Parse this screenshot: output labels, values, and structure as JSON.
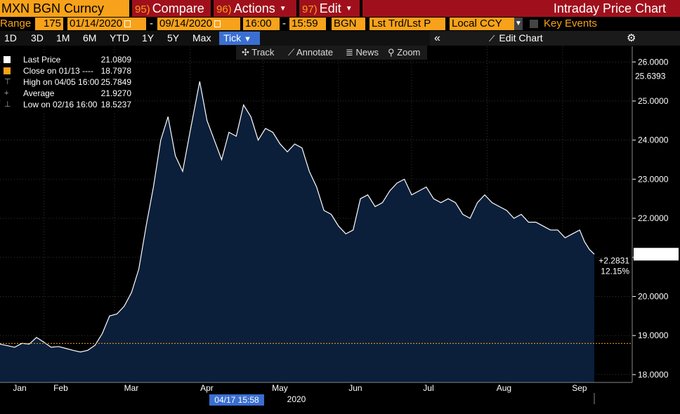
{
  "header": {
    "ticker": "MXN BGN Curncy",
    "compare": {
      "num": "95)",
      "label": "Compare"
    },
    "actions": {
      "num": "96)",
      "label": "Actions"
    },
    "edit": {
      "num": "97)",
      "label": "Edit"
    },
    "title": "Intraday Price Chart"
  },
  "range_bar": {
    "label": "Range",
    "days": "175",
    "start_date": "01/14/2020",
    "end_date": "09/14/2020",
    "start_time": "16:00",
    "end_time": "15:59",
    "source": "BGN",
    "price_type": "Lst Trd/Lst P",
    "currency": "Local CCY",
    "key_events": "Key Events"
  },
  "periods": [
    "1D",
    "3D",
    "1M",
    "6M",
    "YTD",
    "1Y",
    "5Y",
    "Max"
  ],
  "tick_label": "Tick",
  "edit_chart": "Edit Chart",
  "chart_tools": {
    "track": "Track",
    "annotate": "Annotate",
    "news": "News",
    "zoom": "Zoom"
  },
  "legend": [
    {
      "label": "Last Price",
      "value": "21.0809",
      "color": "#ffffff"
    },
    {
      "label": "Close on 01/13 ----",
      "value": "18.7978",
      "color": "#f7a21a"
    },
    {
      "label": "High on 04/05 16:00",
      "value": "25.7849"
    },
    {
      "label": "Average",
      "value": "21.9270"
    },
    {
      "label": "Low on 02/16 16:00",
      "value": "18.5237"
    }
  ],
  "chart_data": {
    "type": "area",
    "x_labels": [
      "Jan",
      "Feb",
      "Mar",
      "Apr",
      "May",
      "Jun",
      "Jul",
      "Aug",
      "Sep"
    ],
    "year_label": "2020",
    "crosshair_label": "04/17 15:58",
    "ylim": [
      17.8,
      26.4
    ],
    "y_ticks": [
      "18.0000",
      "19.0000",
      "20.0000",
      "21.0000",
      "22.0000",
      "23.0000",
      "24.0000",
      "25.0000",
      "26.0000"
    ],
    "last_price": 21.0809,
    "last_price_label": "21.0809",
    "crosshair_value_label": "25.6393",
    "prev_close": 18.7978,
    "change_abs": "+2.2831",
    "change_pct": "12.15%",
    "series": [
      {
        "points": [
          [
            "01-14",
            18.78
          ],
          [
            "01-17",
            18.74
          ],
          [
            "01-20",
            18.7
          ],
          [
            "01-23",
            18.8
          ],
          [
            "01-26",
            18.78
          ],
          [
            "01-29",
            18.95
          ],
          [
            "02-01",
            18.83
          ],
          [
            "02-04",
            18.7
          ],
          [
            "02-07",
            18.72
          ],
          [
            "02-10",
            18.67
          ],
          [
            "02-13",
            18.62
          ],
          [
            "02-16",
            18.58
          ],
          [
            "02-19",
            18.62
          ],
          [
            "02-22",
            18.75
          ],
          [
            "02-25",
            19.05
          ],
          [
            "02-28",
            19.5
          ],
          [
            "03-02",
            19.55
          ],
          [
            "03-05",
            19.75
          ],
          [
            "03-08",
            20.1
          ],
          [
            "03-11",
            20.7
          ],
          [
            "03-14",
            21.8
          ],
          [
            "03-17",
            22.8
          ],
          [
            "03-20",
            24.0
          ],
          [
            "03-23",
            24.6
          ],
          [
            "03-26",
            23.6
          ],
          [
            "03-29",
            23.2
          ],
          [
            "04-01",
            24.2
          ],
          [
            "04-05",
            25.5
          ],
          [
            "04-08",
            24.5
          ],
          [
            "04-11",
            24.0
          ],
          [
            "04-14",
            23.5
          ],
          [
            "04-17",
            24.2
          ],
          [
            "04-20",
            24.1
          ],
          [
            "04-23",
            24.9
          ],
          [
            "04-26",
            24.6
          ],
          [
            "04-29",
            24.0
          ],
          [
            "05-02",
            24.3
          ],
          [
            "05-05",
            24.2
          ],
          [
            "05-08",
            23.9
          ],
          [
            "05-11",
            23.7
          ],
          [
            "05-14",
            23.9
          ],
          [
            "05-17",
            23.8
          ],
          [
            "05-20",
            23.2
          ],
          [
            "05-23",
            22.8
          ],
          [
            "05-26",
            22.2
          ],
          [
            "05-29",
            22.1
          ],
          [
            "06-01",
            21.8
          ],
          [
            "06-04",
            21.6
          ],
          [
            "06-07",
            21.7
          ],
          [
            "06-10",
            22.5
          ],
          [
            "06-13",
            22.6
          ],
          [
            "06-16",
            22.3
          ],
          [
            "06-19",
            22.4
          ],
          [
            "06-22",
            22.7
          ],
          [
            "06-25",
            22.9
          ],
          [
            "06-28",
            23.0
          ],
          [
            "07-01",
            22.6
          ],
          [
            "07-04",
            22.7
          ],
          [
            "07-07",
            22.8
          ],
          [
            "07-10",
            22.5
          ],
          [
            "07-13",
            22.4
          ],
          [
            "07-16",
            22.5
          ],
          [
            "07-19",
            22.4
          ],
          [
            "07-22",
            22.1
          ],
          [
            "07-25",
            22.0
          ],
          [
            "07-28",
            22.4
          ],
          [
            "07-31",
            22.6
          ],
          [
            "08-03",
            22.4
          ],
          [
            "08-06",
            22.3
          ],
          [
            "08-09",
            22.2
          ],
          [
            "08-12",
            22.0
          ],
          [
            "08-15",
            22.1
          ],
          [
            "08-18",
            21.9
          ],
          [
            "08-21",
            21.9
          ],
          [
            "08-24",
            21.8
          ],
          [
            "08-27",
            21.7
          ],
          [
            "08-30",
            21.7
          ],
          [
            "09-02",
            21.5
          ],
          [
            "09-05",
            21.6
          ],
          [
            "09-08",
            21.7
          ],
          [
            "09-10",
            21.4
          ],
          [
            "09-12",
            21.2
          ],
          [
            "09-14",
            21.08
          ]
        ]
      }
    ]
  },
  "colors": {
    "orange": "#f7a21a",
    "title_red": "#a0101c",
    "area_fill": "#0b1f3a",
    "tick_blue": "#3a6fd1"
  }
}
